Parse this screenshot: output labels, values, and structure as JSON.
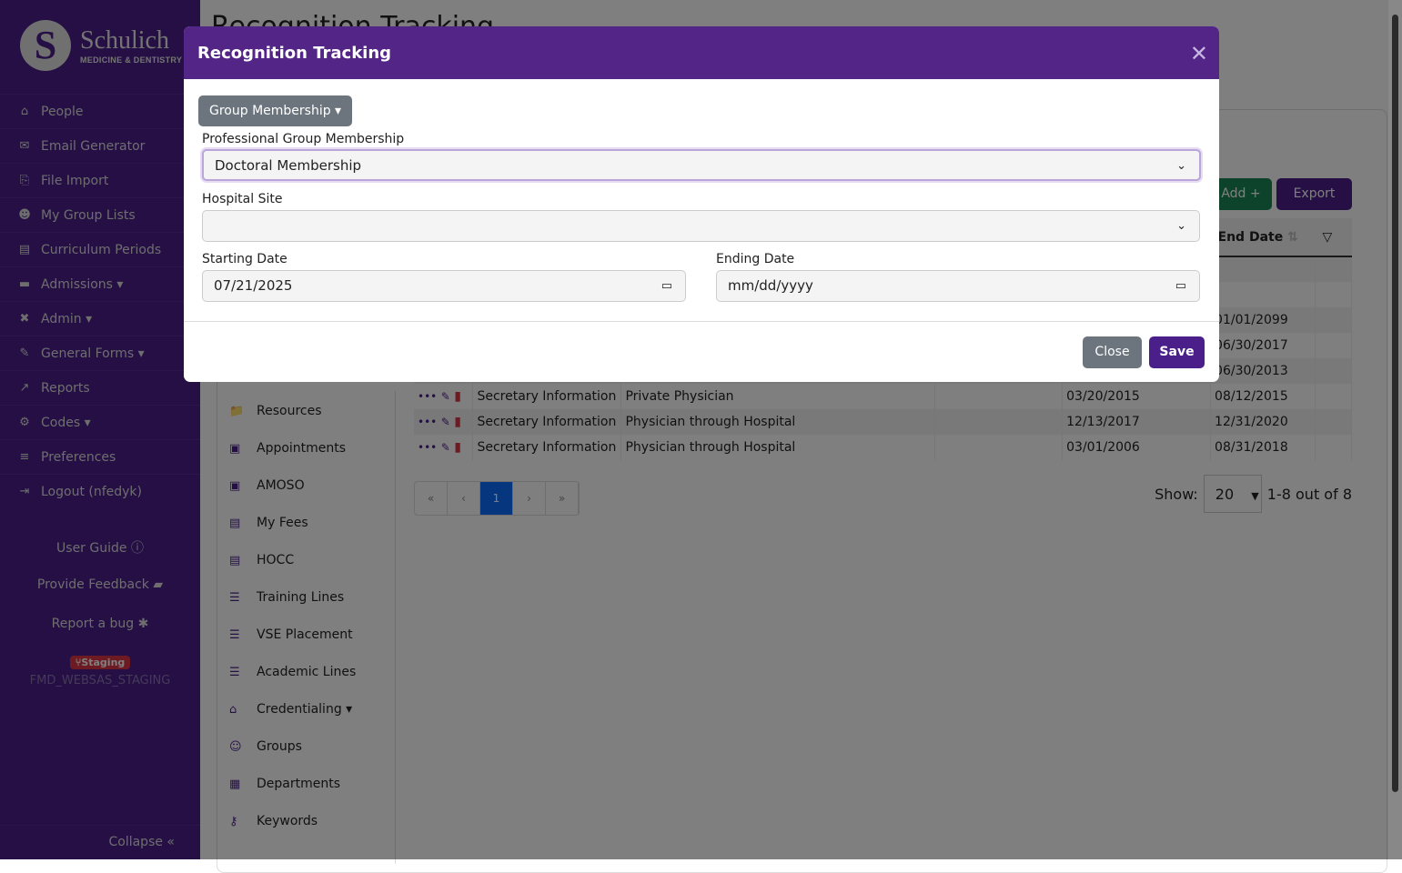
{
  "logo": {
    "name": "Schulich",
    "sub": "MEDICINE & DENTISTRY"
  },
  "sidebar": {
    "items": [
      {
        "label": "People",
        "icon": "home-icon"
      },
      {
        "label": "Email Generator",
        "icon": "envelope-icon"
      },
      {
        "label": "File Import",
        "icon": "file-import-icon"
      },
      {
        "label": "My Group Lists",
        "icon": "users-icon"
      },
      {
        "label": "Curriculum Periods",
        "icon": "calendar-icon"
      },
      {
        "label": "Admissions ▾",
        "icon": "id-card-icon"
      },
      {
        "label": "Admin ▾",
        "icon": "tools-icon"
      },
      {
        "label": "General Forms ▾",
        "icon": "form-icon"
      },
      {
        "label": "Reports",
        "icon": "chart-line-icon"
      },
      {
        "label": "Codes ▾",
        "icon": "cogs-icon"
      },
      {
        "label": "Preferences",
        "icon": "sliders-icon"
      },
      {
        "label": "Logout (nfedyk)",
        "icon": "logout-icon"
      }
    ],
    "user_guide": "User Guide",
    "feedback": "Provide Feedback",
    "bug": "Report a bug",
    "staging": "Staging",
    "env": "FMD_WEBSAS_STAGING",
    "collapse": "Collapse «"
  },
  "page": {
    "title": "Recognition Tracking"
  },
  "subnav": [
    "Resources",
    "Appointments",
    "AMOSO",
    "My Fees",
    "HOCC",
    "Training Lines",
    "VSE Placement",
    "Academic Lines",
    "Credentialing ▾",
    "Groups",
    "Departments",
    "Keywords"
  ],
  "toolbar": {
    "add": "Add +",
    "export": "Export"
  },
  "table": {
    "end_header": "End Date",
    "rows": [
      {
        "c1": "",
        "c2": "",
        "start": "",
        "end": ""
      },
      {
        "c1": "",
        "c2": "",
        "start": "",
        "end": ""
      },
      {
        "c1": "",
        "c2": "",
        "start": "",
        "end": "01/01/2099"
      },
      {
        "c1": "",
        "c2": "",
        "start": "",
        "end": "06/30/2017"
      },
      {
        "c1": "",
        "c2": "",
        "start": "",
        "end": "06/30/2013"
      },
      {
        "c1": "Secretary Information",
        "c2": "Private Physician",
        "start": "03/20/2015",
        "end": "08/12/2015"
      },
      {
        "c1": "Secretary Information",
        "c2": "Physician through Hospital",
        "start": "12/13/2017",
        "end": "12/31/2020"
      },
      {
        "c1": "Secretary Information",
        "c2": "Physician through Hospital",
        "start": "03/01/2006",
        "end": "08/31/2018"
      }
    ]
  },
  "pager": {
    "first": "«",
    "prev": "‹",
    "current": "1",
    "next": "›",
    "last": "»",
    "show_label": "Show:",
    "page_size": "20",
    "summary": "1-8 out of 8"
  },
  "modal": {
    "title": "Recognition Tracking",
    "group_btn": "Group Membership ▾",
    "pgm_label": "Professional Group Membership",
    "pgm_value": "Doctoral Membership",
    "site_label": "Hospital Site",
    "site_value": "",
    "start_label": "Starting Date",
    "start_value": "07/21/2025",
    "end_label": "Ending Date",
    "end_value": "mm/dd/yyyy",
    "close": "Close",
    "save": "Save"
  },
  "colors": {
    "brand": "#522586",
    "success": "#198754",
    "danger": "#dc3545",
    "secondary": "#6c757d"
  }
}
